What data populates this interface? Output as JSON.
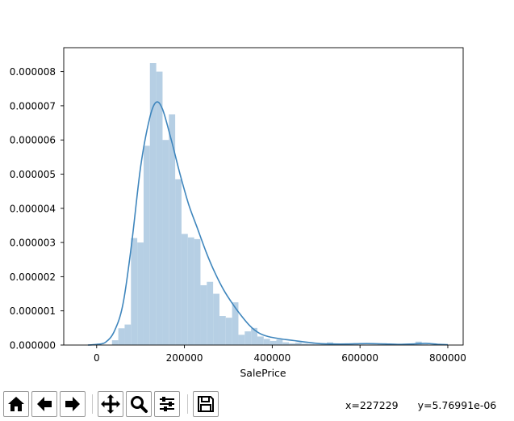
{
  "chart_data": {
    "type": "bar",
    "xlabel": "SalePrice",
    "ylabel": "",
    "xlim": [
      -75000,
      835000
    ],
    "ylim": [
      0,
      8.7e-06
    ],
    "x_ticks": [
      0,
      200000,
      400000,
      600000,
      800000
    ],
    "x_tick_labels": [
      "0",
      "200000",
      "400000",
      "600000",
      "800000"
    ],
    "y_ticks": [
      0,
      1e-06,
      2e-06,
      3e-06,
      4e-06,
      5e-06,
      6e-06,
      7e-06,
      8e-06
    ],
    "y_tick_labels": [
      "0.000000",
      "0.000001",
      "0.000002",
      "0.000003",
      "0.000004",
      "0.000005",
      "0.000006",
      "0.000007",
      "0.000008"
    ],
    "hist_bin_start": 34900,
    "hist_bin_width": 14402,
    "hist_density": [
      1.4e-07,
      4.9e-07,
      6e-07,
      3.13e-06,
      3e-06,
      5.83e-06,
      8.25e-06,
      8e-06,
      6e-06,
      6.75e-06,
      4.85e-06,
      3.25e-06,
      3.15e-06,
      3.1e-06,
      1.75e-06,
      1.85e-06,
      1.5e-06,
      8.5e-07,
      8e-07,
      1.25e-06,
      3e-07,
      4e-07,
      5e-07,
      2.5e-07,
      1.8e-07,
      1.2e-07,
      1.6e-07,
      8e-08,
      5e-08,
      7e-08,
      4e-08,
      3e-08,
      2e-08,
      3e-08,
      8e-08,
      2e-08,
      2e-08,
      3e-08,
      2e-08,
      1e-08,
      1e-08,
      1e-08,
      2e-08,
      1e-08,
      1e-08,
      1e-08,
      1e-08,
      1e-08,
      1e-07,
      2e-08,
      1e-08,
      1e-08,
      1e-08
    ],
    "kde_x": [
      -20000,
      0,
      20000,
      40000,
      60000,
      80000,
      100000,
      120000,
      135000,
      150000,
      170000,
      190000,
      210000,
      230000,
      250000,
      270000,
      290000,
      310000,
      330000,
      350000,
      370000,
      390000,
      410000,
      430000,
      450000,
      480000,
      510000,
      540000,
      570000,
      600000,
      630000,
      660000,
      690000,
      720000,
      750000,
      780000,
      800000
    ],
    "kde_y": [
      0.0,
      2e-08,
      8e-08,
      4e-07,
      1.2e-06,
      3e-06,
      5.2e-06,
      6.6e-06,
      7.1e-06,
      6.9e-06,
      6e-06,
      5e-06,
      4.1e-06,
      3.4e-06,
      2.7e-06,
      2.1e-06,
      1.6e-06,
      1.2e-06,
      8.5e-07,
      5.5e-07,
      3.5e-07,
      2.5e-07,
      2e-07,
      1.6e-07,
      1.3e-07,
      8e-08,
      4e-08,
      3e-08,
      3e-08,
      4e-08,
      4e-08,
      3e-08,
      2e-08,
      3e-08,
      5e-08,
      2e-08,
      1e-08
    ],
    "colors": {
      "hist": "#b6cfe4",
      "kde": "#3f86bd",
      "axes": "#000000"
    }
  },
  "toolbar": {
    "buttons": [
      {
        "name": "home-button",
        "icon": "home-icon"
      },
      {
        "name": "back-button",
        "icon": "arrow-left-icon"
      },
      {
        "name": "forward-button",
        "icon": "arrow-right-icon"
      },
      {
        "name": "pan-button",
        "icon": "move-icon"
      },
      {
        "name": "zoom-button",
        "icon": "magnifier-icon"
      },
      {
        "name": "configure-subplots-button",
        "icon": "sliders-icon"
      },
      {
        "name": "save-button",
        "icon": "floppy-disk-icon"
      }
    ]
  },
  "status": {
    "x_readout": "x=227229",
    "y_readout": "y=5.76991e-06"
  }
}
